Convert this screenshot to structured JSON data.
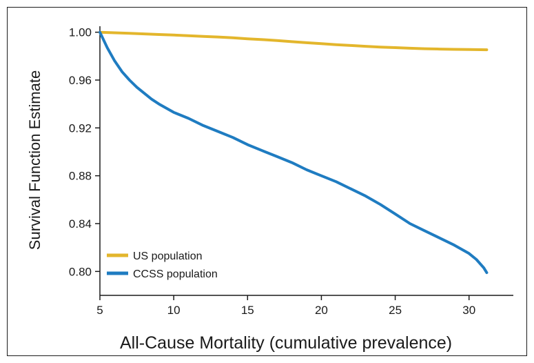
{
  "chart_data": {
    "type": "line",
    "xlabel": "All-Cause Mortality (cumulative prevalence)",
    "ylabel": "Survival Function Estimate",
    "xlim": [
      5,
      33
    ],
    "ylim": [
      0.78,
      1.005
    ],
    "xticks": [
      5,
      10,
      15,
      20,
      25,
      30
    ],
    "yticks": [
      0.8,
      0.84,
      0.88,
      0.92,
      0.96,
      1.0
    ],
    "xtick_labels": [
      "5",
      "10",
      "15",
      "20",
      "25",
      "30"
    ],
    "ytick_labels": [
      "0.80",
      "0.84",
      "0.88",
      "0.92",
      "0.96",
      "1.00"
    ],
    "grid": false,
    "legend": "lower-left",
    "series": [
      {
        "name": "US population",
        "color": "#e3b62c",
        "x": [
          5,
          6,
          7,
          8,
          9,
          10,
          11,
          12,
          13,
          14,
          15,
          16,
          17,
          18,
          19,
          20,
          21,
          22,
          23,
          24,
          25,
          26,
          27,
          28,
          29,
          30,
          31.2
        ],
        "y": [
          1.0,
          0.9995,
          0.9991,
          0.9986,
          0.9981,
          0.9976,
          0.9971,
          0.9965,
          0.996,
          0.9953,
          0.9945,
          0.9938,
          0.993,
          0.9921,
          0.9912,
          0.9904,
          0.9896,
          0.9889,
          0.9882,
          0.9876,
          0.9871,
          0.9866,
          0.9862,
          0.9859,
          0.9857,
          0.9855,
          0.9853
        ]
      },
      {
        "name": "CCSS population",
        "color": "#1f7cc1",
        "x": [
          5,
          5.5,
          6,
          6.5,
          7,
          7.5,
          8,
          8.5,
          9,
          10,
          11,
          12,
          13,
          14,
          15,
          16,
          17,
          18,
          19,
          20,
          21,
          22,
          23,
          24,
          25,
          26,
          27,
          28,
          29,
          30,
          30.5,
          31,
          31.2
        ],
        "y": [
          1.0,
          0.987,
          0.976,
          0.967,
          0.96,
          0.954,
          0.949,
          0.944,
          0.94,
          0.933,
          0.928,
          0.922,
          0.917,
          0.912,
          0.906,
          0.901,
          0.896,
          0.891,
          0.885,
          0.88,
          0.875,
          0.869,
          0.863,
          0.856,
          0.848,
          0.84,
          0.834,
          0.828,
          0.822,
          0.815,
          0.81,
          0.803,
          0.799
        ]
      }
    ]
  }
}
